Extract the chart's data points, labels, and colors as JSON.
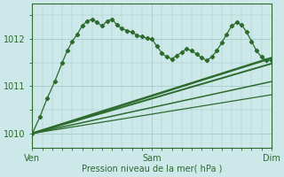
{
  "xlabel": "Pression niveau de la mer( hPa )",
  "ylim": [
    1009.7,
    1012.75
  ],
  "yticks": [
    1010,
    1011,
    1012
  ],
  "background_color": "#cce8e8",
  "grid_color": "#aacece",
  "line_color": "#2d6a2d",
  "xtick_labels": [
    "Ven",
    "Sam",
    "Dim"
  ],
  "xtick_positions": [
    0,
    48,
    96
  ],
  "total_hours": 96,
  "main_x": [
    0,
    3,
    6,
    9,
    12,
    14,
    16,
    18,
    20,
    22,
    24,
    26,
    28,
    30,
    32,
    34,
    36,
    38,
    40,
    42,
    44,
    46,
    48,
    50,
    52,
    54,
    56,
    58,
    60,
    62,
    64,
    66,
    68,
    70,
    72,
    74,
    76,
    78,
    80,
    82,
    84,
    86,
    88,
    90,
    92,
    94,
    96
  ],
  "main_y": [
    1010.0,
    1010.35,
    1010.75,
    1011.1,
    1011.5,
    1011.75,
    1011.95,
    1012.1,
    1012.28,
    1012.38,
    1012.42,
    1012.35,
    1012.28,
    1012.38,
    1012.42,
    1012.3,
    1012.22,
    1012.18,
    1012.15,
    1012.08,
    1012.05,
    1012.02,
    1012.0,
    1011.85,
    1011.7,
    1011.62,
    1011.58,
    1011.65,
    1011.72,
    1011.8,
    1011.75,
    1011.68,
    1011.6,
    1011.55,
    1011.62,
    1011.75,
    1011.92,
    1012.1,
    1012.28,
    1012.35,
    1012.3,
    1012.15,
    1011.95,
    1011.75,
    1011.62,
    1011.55,
    1011.55
  ],
  "trend_lines": [
    {
      "x": [
        0,
        96
      ],
      "y": [
        1010.0,
        1011.6
      ],
      "lw": 1.8
    },
    {
      "x": [
        0,
        96
      ],
      "y": [
        1010.0,
        1011.48
      ],
      "lw": 1.4
    },
    {
      "x": [
        0,
        96
      ],
      "y": [
        1010.0,
        1011.1
      ],
      "lw": 1.1
    },
    {
      "x": [
        0,
        96
      ],
      "y": [
        1010.0,
        1010.82
      ],
      "lw": 0.9
    }
  ]
}
